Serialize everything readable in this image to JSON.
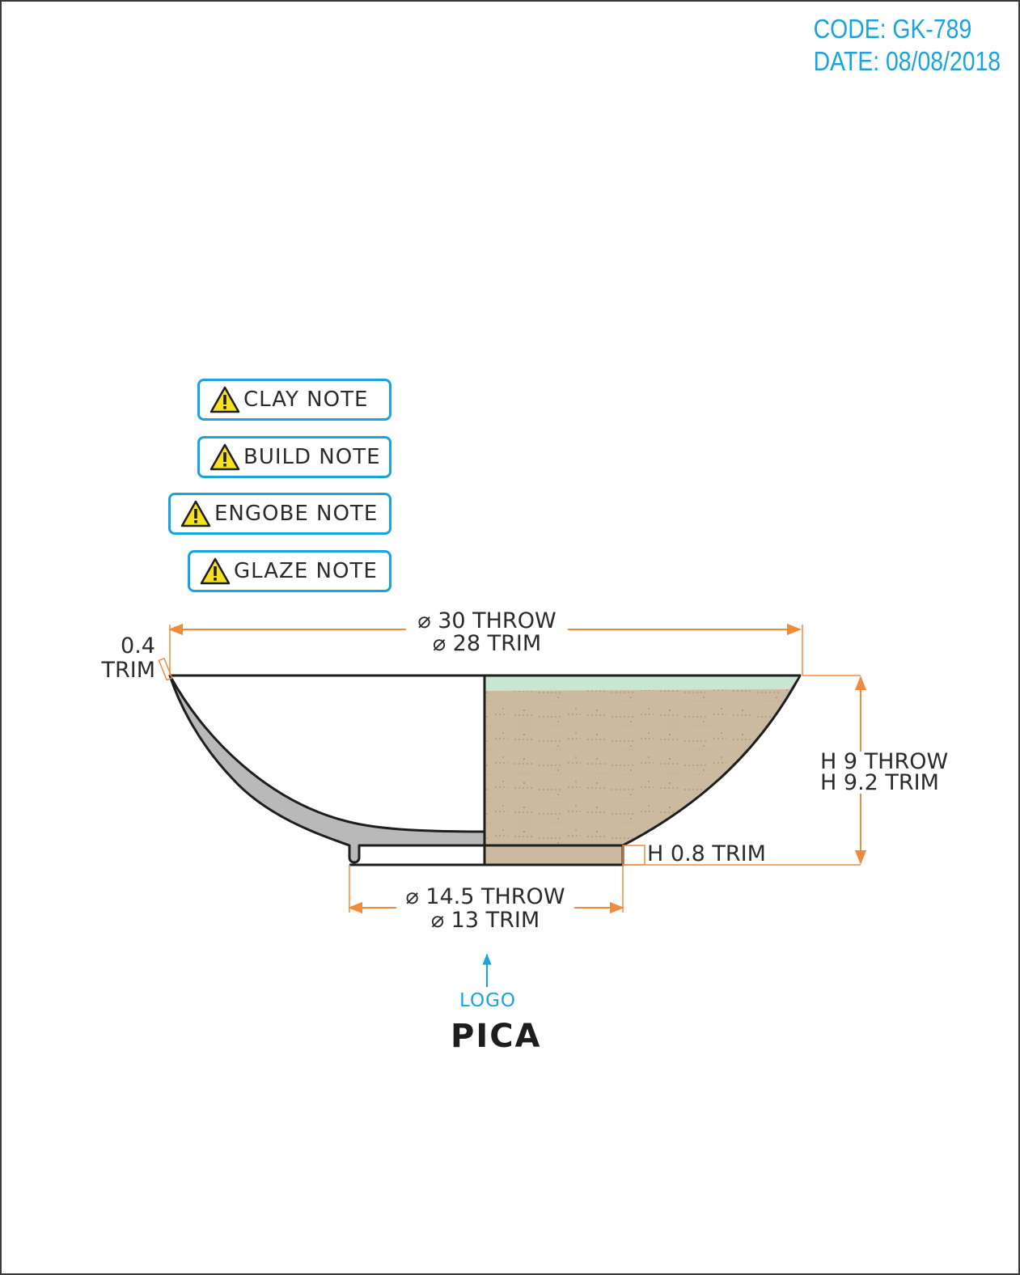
{
  "header": {
    "code": "CODE: GK-789",
    "date": "DATE: 08/08/2018"
  },
  "notes": [
    {
      "label": "CLAY NOTE",
      "icon": "warning-icon"
    },
    {
      "label": "BUILD NOTE",
      "icon": "warning-icon"
    },
    {
      "label": "ENGOBE NOTE",
      "icon": "warning-icon"
    },
    {
      "label": "GLAZE NOTE",
      "icon": "warning-icon"
    }
  ],
  "dimensions": {
    "rim_throw": "⌀ 30 THROW",
    "rim_trim": "⌀ 28 TRIM",
    "wall_value": "0.4",
    "wall_trim": "TRIM",
    "height_throw": "H 9 THROW",
    "height_trim": "H 9.2 TRIM",
    "foot_height": "H 0.8 TRIM",
    "foot_throw": "⌀ 14.5 THROW",
    "foot_trim": "⌀ 13 TRIM"
  },
  "logo": {
    "label": "LOGO",
    "brand": "PICA"
  },
  "colors": {
    "accent": "#1aa3dc",
    "dimension": "#f08a3c",
    "clay": "#cbb9a0",
    "glaze": "#c9e6d2",
    "section": "#b9b9b9",
    "warning": "#f5e11f"
  }
}
